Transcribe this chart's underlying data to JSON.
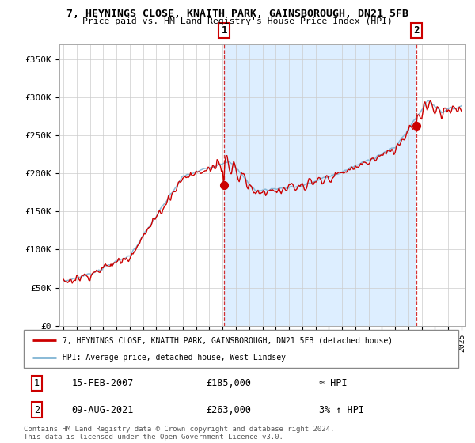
{
  "title_line1": "7, HEYNINGS CLOSE, KNAITH PARK, GAINSBOROUGH, DN21 5FB",
  "title_line2": "Price paid vs. HM Land Registry's House Price Index (HPI)",
  "ylim": [
    0,
    370000
  ],
  "yticks": [
    0,
    50000,
    100000,
    150000,
    200000,
    250000,
    300000,
    350000
  ],
  "ytick_labels": [
    "£0",
    "£50K",
    "£100K",
    "£150K",
    "£200K",
    "£250K",
    "£300K",
    "£350K"
  ],
  "sale1_x": 2007.125,
  "sale1_price": 185000,
  "sale2_x": 2021.614,
  "sale2_price": 263000,
  "legend_line1": "7, HEYNINGS CLOSE, KNAITH PARK, GAINSBOROUGH, DN21 5FB (detached house)",
  "legend_line2": "HPI: Average price, detached house, West Lindsey",
  "footer": "Contains HM Land Registry data © Crown copyright and database right 2024.\nThis data is licensed under the Open Government Licence v3.0.",
  "table_row1": [
    "1",
    "15-FEB-2007",
    "£185,000",
    "≈ HPI"
  ],
  "table_row2": [
    "2",
    "09-AUG-2021",
    "£263,000",
    "3% ↑ HPI"
  ],
  "hpi_color": "#7fb3d3",
  "price_color": "#cc0000",
  "fill_color": "#ddeeff",
  "background_color": "#ffffff",
  "grid_color": "#cccccc",
  "xmin": 1994.7,
  "xmax": 2025.3
}
